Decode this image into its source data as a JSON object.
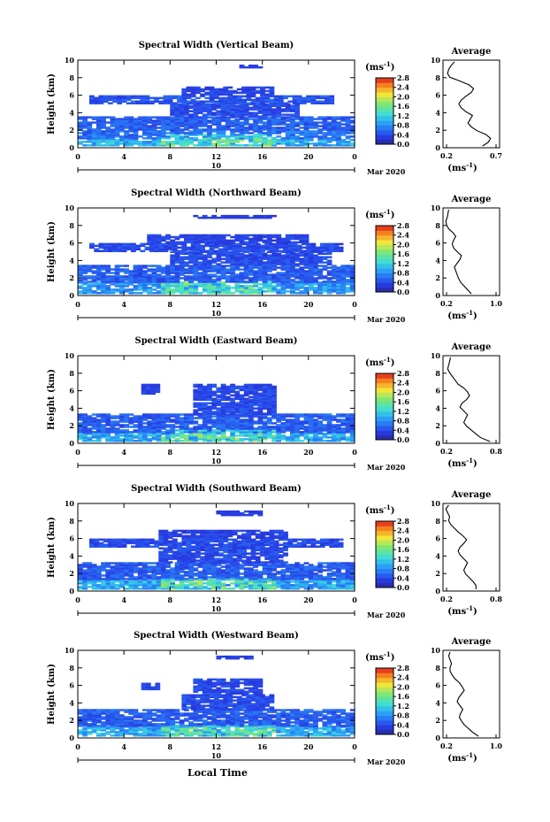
{
  "footer": {
    "xlabel": "Local Time"
  },
  "chart_data": [
    {
      "type": "heatmap",
      "title": "Spectral Width (Vertical Beam)",
      "ylabel": "Height (km)",
      "ylim": [
        0,
        10
      ],
      "xlim": [
        0,
        24
      ],
      "yticks": [
        "0",
        "2",
        "4",
        "6",
        "8",
        "10"
      ],
      "xticks": [
        "0",
        "4",
        "8",
        "12",
        "16",
        "20",
        "0"
      ],
      "date_day": "10",
      "date_month": "Mar 2020",
      "colorbar": {
        "unit": "(ms",
        "unit_exp": "-1",
        "unit_close": ")",
        "range": [
          0,
          2.8
        ],
        "ticks": [
          "0.0",
          "0.4",
          "0.8",
          "1.2",
          "1.6",
          "2.0",
          "2.4",
          "2.8"
        ]
      },
      "layers": [
        {
          "h0": 0.2,
          "h1": 1.0,
          "t0": 0,
          "t1": 24,
          "v": 0.9
        },
        {
          "h0": 1.0,
          "h1": 2.0,
          "t0": 0,
          "t1": 24,
          "v": 0.6
        },
        {
          "h0": 2.0,
          "h1": 3.5,
          "t0": 0,
          "t1": 24,
          "v": 0.5
        },
        {
          "h0": 3.5,
          "h1": 5.0,
          "t0": 8,
          "t1": 19,
          "v": 0.4
        },
        {
          "h0": 5.0,
          "h1": 6.0,
          "t0": 1,
          "t1": 22,
          "v": 0.45
        },
        {
          "h0": 6.0,
          "h1": 6.9,
          "t0": 9,
          "t1": 17,
          "v": 0.35
        },
        {
          "h0": 9.1,
          "h1": 9.5,
          "t0": 14,
          "t1": 16,
          "v": 0.3
        }
      ],
      "avg": {
        "xlim": [
          0.2,
          0.7
        ],
        "xticks": [
          "0.2",
          "0.7"
        ],
        "values": [
          0.55,
          0.6,
          0.62,
          0.58,
          0.5,
          0.45,
          0.42,
          0.44,
          0.46,
          0.4,
          0.36,
          0.34,
          0.36,
          0.4,
          0.45,
          0.47,
          0.43,
          0.35,
          0.26,
          0.24,
          0.25,
          0.27,
          0.3
        ]
      }
    },
    {
      "type": "heatmap",
      "title": "Spectral Width (Northward Beam)",
      "ylabel": "Height (km)",
      "ylim": [
        0,
        10
      ],
      "xlim": [
        0,
        24
      ],
      "yticks": [
        "0",
        "2",
        "4",
        "6",
        "8",
        "10"
      ],
      "xticks": [
        "0",
        "4",
        "8",
        "12",
        "16",
        "20",
        "0"
      ],
      "date_day": "10",
      "date_month": "Mar 2020",
      "colorbar": {
        "unit": "(ms",
        "unit_exp": "-1",
        "unit_close": ")",
        "range": [
          0,
          2.8
        ],
        "ticks": [
          "0.0",
          "0.4",
          "0.8",
          "1.2",
          "1.6",
          "2.0",
          "2.4",
          "2.8"
        ]
      },
      "layers": [
        {
          "h0": 0.2,
          "h1": 1.5,
          "t0": 0,
          "t1": 24,
          "v": 0.8
        },
        {
          "h0": 1.5,
          "h1": 3.5,
          "t0": 0,
          "t1": 24,
          "v": 0.5
        },
        {
          "h0": 3.5,
          "h1": 5.0,
          "t0": 8,
          "t1": 22,
          "v": 0.4
        },
        {
          "h0": 5.0,
          "h1": 6.0,
          "t0": 1,
          "t1": 23,
          "v": 0.4
        },
        {
          "h0": 6.0,
          "h1": 7.0,
          "t0": 6,
          "t1": 20,
          "v": 0.35
        },
        {
          "h0": 8.8,
          "h1": 9.2,
          "t0": 10,
          "t1": 17,
          "v": 0.3
        }
      ],
      "avg": {
        "xlim": [
          0.2,
          1.0
        ],
        "xticks": [
          "0.2",
          "1.0"
        ],
        "values": [
          0.6,
          0.55,
          0.5,
          0.45,
          0.42,
          0.4,
          0.38,
          0.36,
          0.4,
          0.44,
          0.46,
          0.4,
          0.35,
          0.33,
          0.35,
          0.38,
          0.34,
          0.28,
          0.25,
          0.24,
          0.26,
          0.27,
          0.28
        ]
      }
    },
    {
      "type": "heatmap",
      "title": "Spectral Width (Eastward Beam)",
      "ylabel": "Height (km)",
      "ylim": [
        0,
        10
      ],
      "xlim": [
        0,
        24
      ],
      "yticks": [
        "0",
        "2",
        "4",
        "6",
        "8",
        "10"
      ],
      "xticks": [
        "0",
        "4",
        "8",
        "12",
        "16",
        "20",
        "0"
      ],
      "date_day": "10",
      "date_month": "Mar 2020",
      "colorbar": {
        "unit": "(ms",
        "unit_exp": "-1",
        "unit_close": ")",
        "range": [
          0,
          2.8
        ],
        "ticks": [
          "0.0",
          "0.4",
          "0.8",
          "1.2",
          "1.6",
          "2.0",
          "2.4",
          "2.8"
        ]
      },
      "layers": [
        {
          "h0": 0.2,
          "h1": 1.2,
          "t0": 0,
          "t1": 24,
          "v": 0.9
        },
        {
          "h0": 1.2,
          "h1": 3.3,
          "t0": 0,
          "t1": 24,
          "v": 0.5
        },
        {
          "h0": 3.3,
          "h1": 5.0,
          "t0": 10,
          "t1": 17,
          "v": 0.4
        },
        {
          "h0": 5.0,
          "h1": 6.8,
          "t0": 10,
          "t1": 17,
          "v": 0.38
        },
        {
          "h0": 5.6,
          "h1": 6.7,
          "t0": 5.5,
          "t1": 7,
          "v": 0.35
        }
      ],
      "avg": {
        "xlim": [
          0.2,
          0.8
        ],
        "xticks": [
          "0.2",
          "0.8"
        ],
        "values": [
          0.7,
          0.6,
          0.55,
          0.5,
          0.45,
          0.42,
          0.44,
          0.46,
          0.42,
          0.38,
          0.4,
          0.45,
          0.48,
          0.46,
          0.42,
          0.36,
          0.33,
          0.3,
          0.27,
          0.25,
          0.26,
          0.27,
          0.28
        ]
      }
    },
    {
      "type": "heatmap",
      "title": "Spectral Width (Southward Beam)",
      "ylabel": "Height (km)",
      "ylim": [
        0,
        10
      ],
      "xlim": [
        0,
        24
      ],
      "yticks": [
        "0",
        "2",
        "4",
        "6",
        "8",
        "10"
      ],
      "xticks": [
        "0",
        "4",
        "8",
        "12",
        "16",
        "20",
        "0"
      ],
      "date_day": "10",
      "date_month": "Mar 2020",
      "colorbar": {
        "unit": "(ms",
        "unit_exp": "-1",
        "unit_close": ")",
        "range": [
          0,
          2.8
        ],
        "ticks": [
          "0.0",
          "0.4",
          "0.8",
          "1.2",
          "1.6",
          "2.0",
          "2.4",
          "2.8"
        ]
      },
      "layers": [
        {
          "h0": 0.2,
          "h1": 1.3,
          "t0": 0,
          "t1": 24,
          "v": 0.9
        },
        {
          "h0": 1.3,
          "h1": 3.2,
          "t0": 0,
          "t1": 24,
          "v": 0.5
        },
        {
          "h0": 3.2,
          "h1": 5.0,
          "t0": 7,
          "t1": 18,
          "v": 0.4
        },
        {
          "h0": 5.0,
          "h1": 6.0,
          "t0": 1,
          "t1": 23,
          "v": 0.4
        },
        {
          "h0": 6.0,
          "h1": 7.0,
          "t0": 7,
          "t1": 18,
          "v": 0.35
        },
        {
          "h0": 8.6,
          "h1": 9.2,
          "t0": 12,
          "t1": 16,
          "v": 0.3
        }
      ],
      "avg": {
        "xlim": [
          0.2,
          0.8
        ],
        "xticks": [
          "0.2",
          "0.8"
        ],
        "values": [
          0.55,
          0.55,
          0.52,
          0.48,
          0.44,
          0.42,
          0.44,
          0.46,
          0.42,
          0.38,
          0.36,
          0.38,
          0.42,
          0.45,
          0.41,
          0.36,
          0.32,
          0.28,
          0.26,
          0.27,
          0.25,
          0.23,
          0.26
        ]
      }
    },
    {
      "type": "heatmap",
      "title": "Spectral Width (Westward Beam)",
      "ylabel": "Height (km)",
      "ylim": [
        0,
        10
      ],
      "xlim": [
        0,
        24
      ],
      "yticks": [
        "0",
        "2",
        "4",
        "6",
        "8",
        "10"
      ],
      "xticks": [
        "0",
        "4",
        "8",
        "12",
        "16",
        "20",
        "0"
      ],
      "date_day": "10",
      "date_month": "Mar 2020",
      "colorbar": {
        "unit": "(ms",
        "unit_exp": "-1",
        "unit_close": ")",
        "range": [
          0,
          2.8
        ],
        "ticks": [
          "0.0",
          "0.4",
          "0.8",
          "1.2",
          "1.6",
          "2.0",
          "2.4",
          "2.8"
        ]
      },
      "layers": [
        {
          "h0": 0.2,
          "h1": 1.3,
          "t0": 0,
          "t1": 24,
          "v": 0.9
        },
        {
          "h0": 1.3,
          "h1": 3.2,
          "t0": 0,
          "t1": 24,
          "v": 0.5
        },
        {
          "h0": 3.2,
          "h1": 5.0,
          "t0": 9,
          "t1": 17,
          "v": 0.4
        },
        {
          "h0": 5.0,
          "h1": 6.8,
          "t0": 10,
          "t1": 16,
          "v": 0.38
        },
        {
          "h0": 5.5,
          "h1": 6.3,
          "t0": 5.5,
          "t1": 7,
          "v": 0.35
        },
        {
          "h0": 9.0,
          "h1": 9.4,
          "t0": 12,
          "t1": 15,
          "v": 0.3
        }
      ],
      "avg": {
        "xlim": [
          0.2,
          1.0
        ],
        "xticks": [
          "0.2",
          "1.0"
        ],
        "values": [
          0.7,
          0.62,
          0.56,
          0.5,
          0.46,
          0.43,
          0.45,
          0.48,
          0.44,
          0.4,
          0.42,
          0.46,
          0.5,
          0.47,
          0.43,
          0.37,
          0.33,
          0.3,
          0.3,
          0.32,
          0.3,
          0.28,
          0.3
        ]
      }
    }
  ]
}
